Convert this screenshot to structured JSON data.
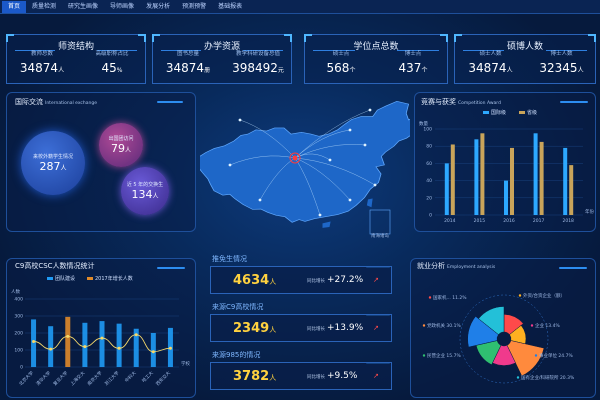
{
  "nav": {
    "tabs": [
      "首页",
      "质量检测",
      "研究生画像",
      "导师画像",
      "发展分析",
      "预测预警",
      "基础报表"
    ],
    "active": 0
  },
  "cards": [
    {
      "title": "师资结构",
      "items": [
        {
          "label": "教师总数",
          "value": "34874",
          "unit": "人"
        },
        {
          "label": "高级职称占比",
          "value": "45",
          "unit": "%"
        }
      ]
    },
    {
      "title": "办学资源",
      "items": [
        {
          "label": "图书总量",
          "value": "34874",
          "unit": "册"
        },
        {
          "label": "教学科研设备总值",
          "value": "398492",
          "unit": "元"
        }
      ]
    },
    {
      "title": "学位点总数",
      "items": [
        {
          "label": "硕士点",
          "value": "568",
          "unit": "个"
        },
        {
          "label": "博士点",
          "value": "437",
          "unit": "个"
        }
      ]
    },
    {
      "title": "硕博人数",
      "items": [
        {
          "label": "硕士人数",
          "value": "34874",
          "unit": "人"
        },
        {
          "label": "博士人数",
          "value": "32345",
          "unit": "人"
        }
      ]
    }
  ],
  "intl": {
    "title": "国际交流",
    "subtitle": "International exchange",
    "bubbles": [
      {
        "label": "来校外籍学生情况",
        "value": "287",
        "unit": "人"
      },
      {
        "label": "出国团访问",
        "value": "79",
        "unit": "人"
      },
      {
        "label": "近 5 年的交换生",
        "value": "134",
        "unit": "人"
      }
    ]
  },
  "map": {
    "legend_text": "南海诸岛",
    "colors": {
      "land": "#1e67c8",
      "highlight": "#ff3b3b",
      "route": "#bfe2ff"
    }
  },
  "awards": {
    "title": "竞赛与获奖",
    "subtitle": "Competition Award",
    "legend": [
      "国际级",
      "省级"
    ],
    "ylabel": "数量",
    "xlabel_end": "年份"
  },
  "csc": {
    "title": "C9高校CSC人数情况统计",
    "legend": [
      "团队建设",
      "2017年增长人数"
    ],
    "ylabel": "人数",
    "xlabel_end": "学校"
  },
  "middle": [
    {
      "label": "推免生情况",
      "value": "4634",
      "unit": "人",
      "caption": "同比增长",
      "pct": "+27.2%"
    },
    {
      "label": "来源C9高校情况",
      "value": "2349",
      "unit": "人",
      "caption": "同比增长",
      "pct": "+13.9%"
    },
    {
      "label": "来源985的情况",
      "value": "3782",
      "unit": "人",
      "caption": "同比增长",
      "pct": "+9.5%"
    }
  ],
  "employment": {
    "title": "就业分析",
    "subtitle": "Employment analysis",
    "labels": [
      {
        "text": "国家机... 11.2%"
      },
      {
        "text": "外资/合资企业（额）"
      },
      {
        "text": "党政机关 30.1%"
      },
      {
        "text": "企业 13.4%"
      },
      {
        "text": "民营企业 15.7%"
      },
      {
        "text": "事业单位 24.7%"
      },
      {
        "text": "国有企业/科研院所 20.3%"
      }
    ]
  },
  "chart_data": [
    {
      "type": "bar",
      "categories": [
        "2014",
        "2015",
        "2016",
        "2017",
        "2018"
      ],
      "series": [
        {
          "name": "国际级",
          "values": [
            60,
            88,
            40,
            95,
            78
          ]
        },
        {
          "name": "省级",
          "values": [
            82,
            95,
            78,
            85,
            58
          ]
        }
      ],
      "ylabel": "数量",
      "ylim": [
        0,
        100
      ],
      "yticks": [
        0,
        20,
        40,
        60,
        80,
        100
      ],
      "colors": [
        "#2da8ff",
        "#c9a45a"
      ]
    },
    {
      "type": "bar",
      "categories": [
        "北京大学",
        "清华大学",
        "复旦大学",
        "上海交大",
        "南京大学",
        "浙江大学",
        "中科大",
        "哈工大",
        "西安交大"
      ],
      "series": [
        {
          "name": "团队建设",
          "values": [
            280,
            240,
            295,
            260,
            270,
            255,
            225,
            200,
            230
          ]
        },
        {
          "name": "2017年增长人数",
          "values": [
            150,
            105,
            180,
            120,
            170,
            110,
            190,
            90,
            110
          ]
        }
      ],
      "ylabel": "人数",
      "ylim": [
        0,
        400
      ],
      "yticks": [
        0,
        100,
        200,
        300,
        400
      ],
      "highlight_index": 2,
      "colors": [
        "#1f9bf5",
        "#e08a2a",
        "#f5d86a"
      ]
    },
    {
      "type": "pie",
      "labels": [
        "国家机关",
        "外资/合资企业",
        "党政机关",
        "企业",
        "民营企业",
        "事业单位",
        "国有企业/科研院所"
      ],
      "values": [
        11.2,
        8,
        30.1,
        13.4,
        15.7,
        24.7,
        20.3
      ],
      "colors": [
        "#ff4a4a",
        "#ffb020",
        "#ff8a3d",
        "#f03a8c",
        "#2fbf71",
        "#1f7fe8",
        "#23c0d8"
      ]
    }
  ]
}
